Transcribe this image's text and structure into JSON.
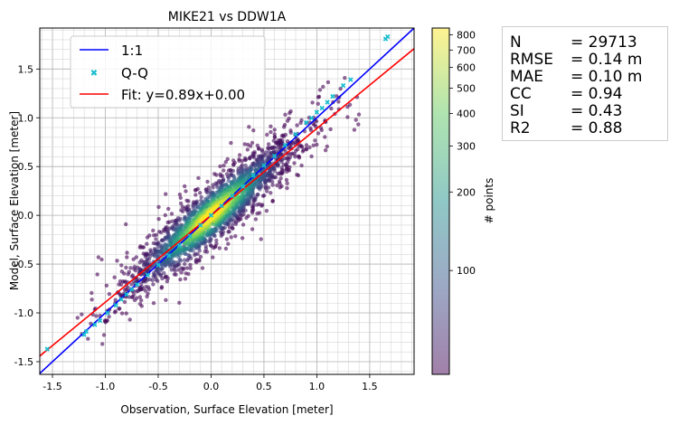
{
  "chart_data": {
    "type": "scatter",
    "title": "MIKE21 vs DDW1A",
    "xlabel": "Observation, Surface Elevation [meter]",
    "ylabel": "Model, Surface Elevation [meter]",
    "xlim": [
      -1.62,
      1.92
    ],
    "ylim": [
      -1.63,
      1.92
    ],
    "x_ticks": [
      "-1.5",
      "-1.0",
      "-0.5",
      "0.0",
      "0.5",
      "1.0",
      "1.5"
    ],
    "x_tick_values": [
      -1.5,
      -1.0,
      -0.5,
      0.0,
      0.5,
      1.0,
      1.5
    ],
    "y_ticks": [
      "-1.5",
      "-1.0",
      "-0.5",
      "0.0",
      "0.5",
      "1.0",
      "1.5"
    ],
    "y_tick_values": [
      -1.5,
      -1.0,
      -0.5,
      0.0,
      0.5,
      1.0,
      1.5
    ],
    "grid": true,
    "legend_position": "top-left",
    "series": [
      {
        "name": "1:1",
        "kind": "line",
        "color": "#0000ff",
        "slope": 1.0,
        "intercept": 0.0
      },
      {
        "name": "Q-Q",
        "kind": "markers",
        "color": "#17becf",
        "x": [
          -1.55,
          -1.2,
          -1.18,
          -1.1,
          -1.05,
          -0.98,
          -0.9,
          -0.85,
          -0.8,
          -0.75,
          -0.7,
          -0.6,
          -0.5,
          -0.4,
          -0.3,
          -0.2,
          -0.1,
          0.0,
          0.1,
          0.2,
          0.3,
          0.4,
          0.5,
          0.6,
          0.7,
          0.8,
          0.9,
          0.95,
          1.0,
          1.05,
          1.1,
          1.15,
          1.25,
          1.32,
          1.65,
          1.67
        ],
        "y": [
          -1.37,
          -1.22,
          -1.19,
          -1.12,
          -1.08,
          -1.0,
          -0.92,
          -0.86,
          -0.81,
          -0.76,
          -0.71,
          -0.61,
          -0.51,
          -0.41,
          -0.31,
          -0.21,
          -0.1,
          0.0,
          0.1,
          0.2,
          0.3,
          0.41,
          0.51,
          0.61,
          0.72,
          0.83,
          0.95,
          1.0,
          1.06,
          1.1,
          1.16,
          1.22,
          1.33,
          1.39,
          1.81,
          1.83
        ]
      },
      {
        "name": "Fit: y=0.89x+0.00",
        "kind": "line",
        "color": "#ff0000",
        "slope": 0.89,
        "intercept": 0.0
      }
    ],
    "density": {
      "colormap": "viridis",
      "alpha": 0.5,
      "main_slope": 0.9,
      "spread": 0.16
    },
    "colorbar": {
      "label": "# points",
      "scale": "log",
      "min": 40,
      "max": 850,
      "ticks": [
        100,
        200,
        300,
        400,
        500,
        600,
        700,
        800
      ],
      "tick_labels": [
        "100",
        "200",
        "300",
        "400",
        "500",
        "600",
        "700",
        "800"
      ]
    }
  },
  "stats": [
    {
      "name": "N",
      "value": "= 29713"
    },
    {
      "name": "RMSE",
      "value": "= 0.14 m"
    },
    {
      "name": "MAE",
      "value": "= 0.10 m"
    },
    {
      "name": "CC",
      "value": "= 0.94"
    },
    {
      "name": "SI",
      "value": "= 0.43"
    },
    {
      "name": "R2",
      "value": "= 0.88"
    }
  ]
}
